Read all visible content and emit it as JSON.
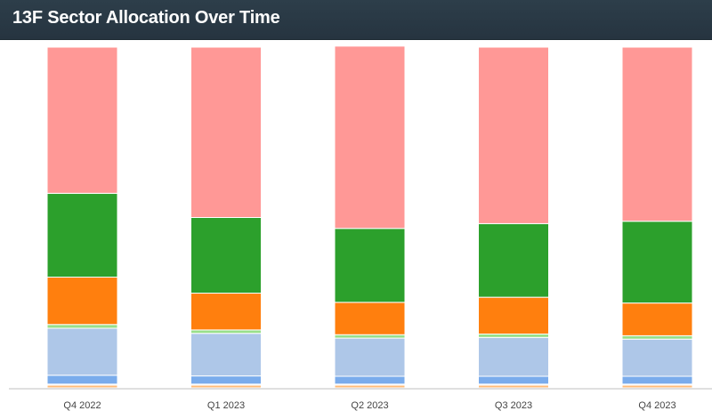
{
  "header": {
    "title": "13F Sector Allocation Over Time"
  },
  "chart_data": {
    "type": "bar",
    "stacked": true,
    "normalized": true,
    "title": "13F Sector Allocation Over Time",
    "xlabel": "",
    "ylabel": "",
    "ylim": [
      0,
      100
    ],
    "grid": false,
    "categories": [
      "Q4 2022",
      "Q1 2023",
      "Q2 2023",
      "Q3 2023",
      "Q4 2023"
    ],
    "series": [
      {
        "color": "#ffbb78",
        "values": [
          0.8,
          0.8,
          0.8,
          0.8,
          0.8
        ]
      },
      {
        "color": "#aec7e8",
        "values": [
          0.3,
          0.3,
          0.3,
          0.3,
          0.3
        ]
      },
      {
        "color": "#7aacec",
        "values": [
          2.6,
          2.4,
          2.3,
          2.3,
          2.3
        ]
      },
      {
        "color": "#aec7e8",
        "values": [
          13.8,
          12.5,
          11.2,
          11.4,
          10.9
        ]
      },
      {
        "color": "#98df8a",
        "values": [
          1.1,
          1.0,
          1.0,
          1.0,
          1.0
        ]
      },
      {
        "color": "#ff7f0e",
        "values": [
          13.9,
          10.8,
          9.5,
          10.8,
          9.6
        ]
      },
      {
        "color": "#2ca02c",
        "values": [
          24.6,
          22.2,
          21.7,
          21.6,
          24.0
        ]
      },
      {
        "color": "#ff9896",
        "values": [
          42.9,
          50.0,
          53.5,
          51.8,
          51.1
        ]
      }
    ]
  }
}
